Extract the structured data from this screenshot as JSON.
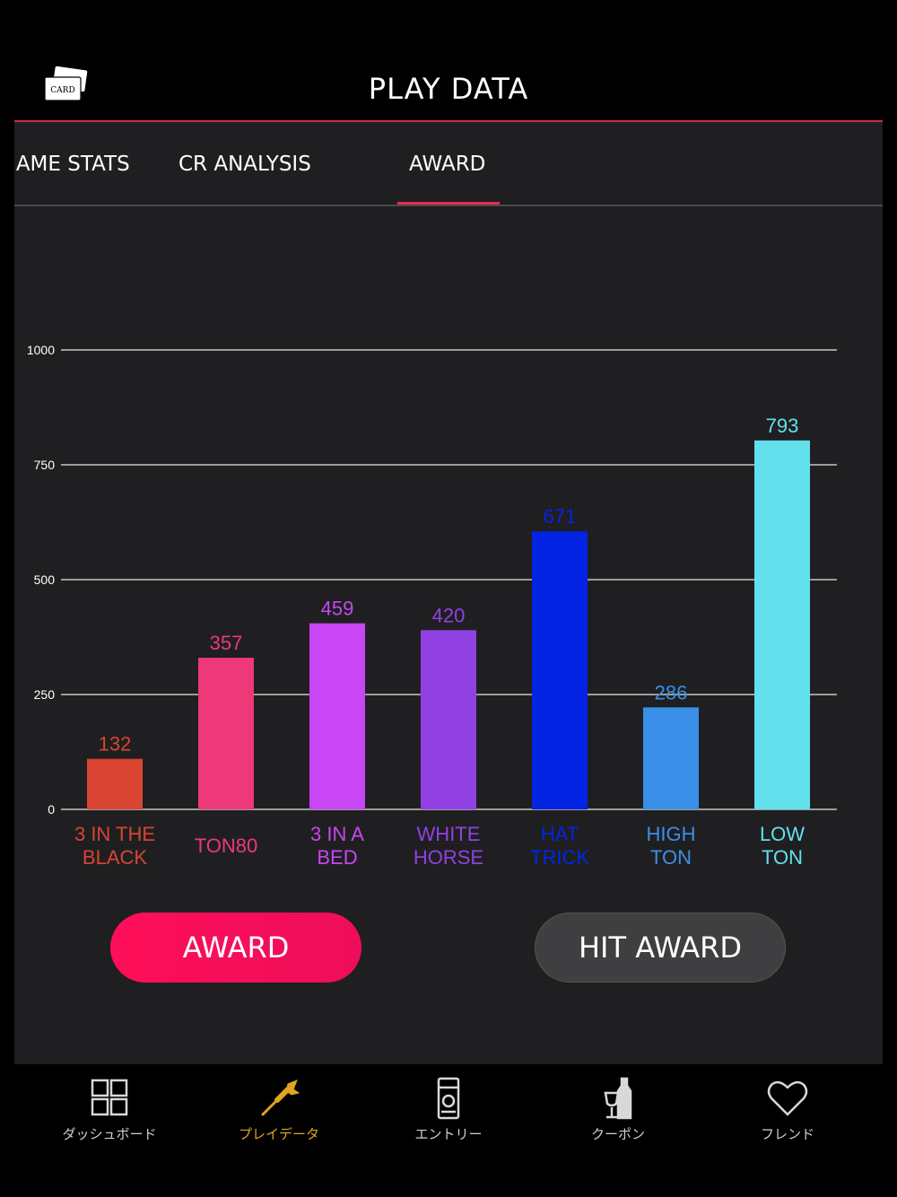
{
  "header": {
    "title": "PLAY DATA",
    "card_icon_text": "CARD"
  },
  "tabs": [
    {
      "label": "GAME STATS",
      "active": false
    },
    {
      "label": "CR ANALYSIS",
      "active": false
    },
    {
      "label": "AWARD",
      "active": true
    }
  ],
  "chart_data": {
    "type": "bar",
    "title": "",
    "xlabel": "",
    "ylabel": "",
    "ylim": [
      0,
      1000
    ],
    "yticks": [
      0,
      250,
      500,
      750,
      1000
    ],
    "grid": true,
    "categories": [
      [
        "3 IN THE",
        "BLACK"
      ],
      [
        "TON80"
      ],
      [
        "3 IN A",
        "BED"
      ],
      [
        "WHITE",
        "HORSE"
      ],
      [
        "HAT",
        "TRICK"
      ],
      [
        "HIGH",
        "TON"
      ],
      [
        "LOW",
        "TON"
      ]
    ],
    "values": [
      132,
      357,
      459,
      420,
      671,
      286,
      793
    ],
    "bar_heights": [
      110,
      330,
      405,
      390,
      605,
      222,
      803
    ],
    "colors": [
      "#d94433",
      "#ee3878",
      "#c846f4",
      "#9141e3",
      "#0424e3",
      "#3a8fe8",
      "#62e0ec"
    ]
  },
  "buttons": {
    "award": "AWARD",
    "hit_award": "HIT AWARD"
  },
  "nav": [
    {
      "label": "ダッシュボード",
      "icon": "grid-icon",
      "active": false
    },
    {
      "label": "プレイデータ",
      "icon": "dart-icon",
      "active": true
    },
    {
      "label": "エントリー",
      "icon": "dart-machine-icon",
      "active": false
    },
    {
      "label": "クーポン",
      "icon": "bottle-glass-icon",
      "active": false
    },
    {
      "label": "フレンド",
      "icon": "heart-icon",
      "active": false
    }
  ],
  "colors": {
    "accent": "#e8294f",
    "nav_active": "#e0a61f",
    "panel": "#1f1f21"
  }
}
